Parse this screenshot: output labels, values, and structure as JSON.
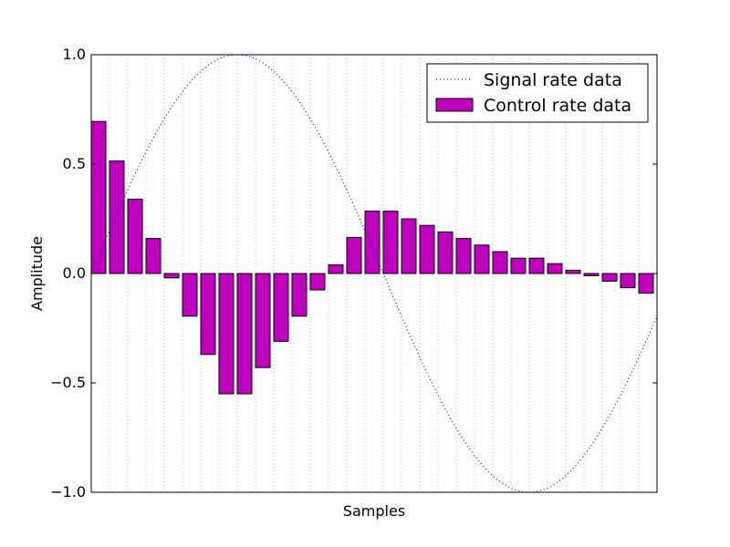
{
  "chart_data": {
    "type": "bar",
    "xlabel": "Samples",
    "ylabel": "Amplitude",
    "ylim": [
      -1.0,
      1.0
    ],
    "xlim": [
      0,
      31
    ],
    "grid": "vertical dotted lines at every sample",
    "legend_position": "top-right",
    "y_ticks": [
      "−1.0",
      "−0.5",
      "0.0",
      "0.5",
      "1.0"
    ],
    "y_tick_values": [
      -1.0,
      -0.5,
      0.0,
      0.5,
      1.0
    ],
    "series": [
      {
        "name": "Signal rate data",
        "kind": "line",
        "style": "dotted",
        "color": "#0000ff",
        "function": "sin",
        "x": [
          0,
          1,
          2,
          3,
          4,
          5,
          6,
          7,
          8,
          9,
          10,
          11,
          12,
          13,
          14,
          15,
          16,
          17,
          18,
          19,
          20,
          21,
          22,
          23,
          24,
          25,
          26,
          27,
          28,
          29,
          30,
          31
        ],
        "values": [
          0.0,
          0.2,
          0.39,
          0.56,
          0.72,
          0.84,
          0.93,
          0.98,
          1.0,
          0.98,
          0.93,
          0.84,
          0.72,
          0.56,
          0.39,
          0.2,
          0.0,
          -0.2,
          -0.39,
          -0.56,
          -0.72,
          -0.84,
          -0.93,
          -0.98,
          -1.0,
          -0.98,
          -0.93,
          -0.84,
          -0.72,
          -0.56,
          -0.39,
          -0.2
        ]
      },
      {
        "name": "Control rate data",
        "kind": "bar",
        "color": "#bf00bf",
        "edge_color": "#000000",
        "x": [
          0,
          1,
          2,
          3,
          4,
          5,
          6,
          7,
          8,
          9,
          10,
          11,
          12,
          13,
          14,
          15,
          16,
          17,
          18,
          19,
          20,
          21,
          22,
          23,
          24,
          25,
          26,
          27,
          28,
          29,
          30
        ],
        "values": [
          0.695,
          0.515,
          0.34,
          0.16,
          -0.02,
          -0.195,
          -0.37,
          -0.55,
          -0.55,
          -0.43,
          -0.31,
          -0.195,
          -0.075,
          0.04,
          0.165,
          0.285,
          0.285,
          0.25,
          0.22,
          0.19,
          0.16,
          0.13,
          0.1,
          0.07,
          0.07,
          0.045,
          0.015,
          -0.01,
          -0.035,
          -0.065,
          -0.09
        ]
      }
    ]
  }
}
